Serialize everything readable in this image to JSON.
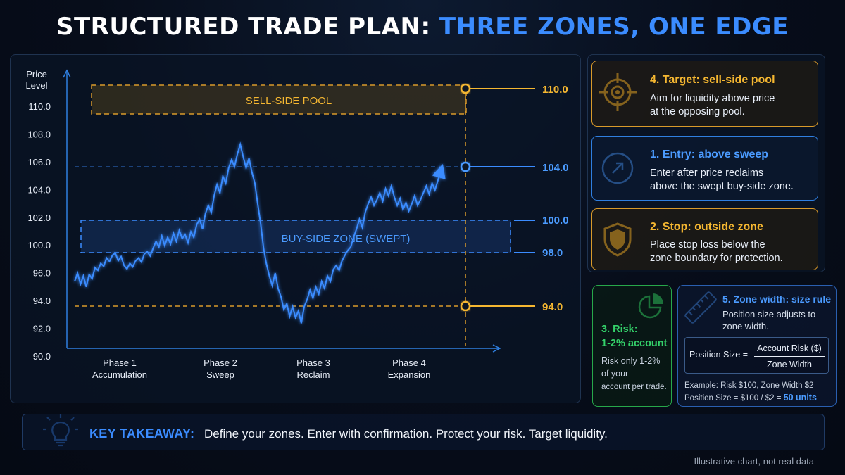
{
  "title": {
    "part1": "STRUCTURED TRADE PLAN:",
    "part2": "THREE ZONES, ONE EDGE"
  },
  "chart_data": {
    "type": "line",
    "ylabel": "Price Level",
    "y_ticks": [
      "90.0",
      "92.0",
      "94.0",
      "96.0",
      "100.0",
      "102.0",
      "104.0",
      "106.0",
      "108.0",
      "110.0"
    ],
    "phases": [
      {
        "num": "Phase 1",
        "name": "Accumulation"
      },
      {
        "num": "Phase 2",
        "name": "Sweep"
      },
      {
        "num": "Phase 3",
        "name": "Reclaim"
      },
      {
        "num": "Phase 4",
        "name": "Expansion"
      }
    ],
    "zones": {
      "sell_side": {
        "label": "SELL-SIDE POOL"
      },
      "buy_side": {
        "label": "BUY-SIDE ZONE (SWEPT)",
        "top": "100.0",
        "bottom": "98.0"
      }
    },
    "levels": {
      "target": "110.0",
      "entry": "104.0",
      "stop": "94.0"
    },
    "series": [
      {
        "values": [
          95.4,
          96.0,
          95.2,
          95.8,
          95.0,
          95.9,
          95.6,
          96.8,
          96.4,
          97.4,
          97.0,
          98.2,
          97.7,
          98.6,
          98.9,
          97.8,
          98.4,
          97.1,
          96.6,
          97.4,
          96.9,
          97.8,
          98.2,
          97.6,
          98.8,
          99.1,
          98.5,
          99.6,
          100.3,
          99.8,
          100.7,
          100.0,
          100.6,
          100.1,
          100.9,
          100.3,
          101.1,
          100.5,
          100.8,
          100.2,
          101.0,
          100.6,
          101.5,
          101.9,
          101.2,
          102.3,
          102.9,
          102.4,
          103.6,
          104.4,
          103.8,
          105.0,
          104.5,
          105.6,
          106.2,
          105.7,
          106.6,
          107.3,
          106.4,
          105.6,
          106.3,
          105.3,
          104.5,
          103.0,
          101.6,
          99.6,
          97.3,
          95.8,
          95.1,
          96.0,
          94.9,
          94.3,
          93.4,
          93.8,
          92.9,
          93.6,
          92.8,
          93.3,
          92.4,
          93.6,
          94.1,
          94.8,
          94.2,
          95.0,
          94.5,
          95.4,
          94.9,
          95.8,
          95.4,
          96.5,
          97.1,
          96.4,
          97.8,
          98.6,
          99.3,
          99.8,
          100.6,
          101.2,
          101.9,
          101.3,
          102.4,
          103.0,
          103.5,
          102.9,
          103.3,
          103.8,
          103.2,
          104.1,
          103.6,
          104.3,
          103.5,
          102.9,
          103.4,
          102.6,
          103.1,
          102.5,
          103.0,
          103.6,
          102.9,
          103.3,
          103.8,
          104.3,
          103.7,
          104.5,
          104.0,
          104.7,
          105.4
        ]
      }
    ],
    "x_range": [
      0,
      126
    ],
    "grid": false
  },
  "cards": {
    "target": {
      "title": "4. Target: sell-side pool",
      "line1": "Aim for liquidity above price",
      "line2": "at the opposing pool.",
      "icon": "crosshair-icon"
    },
    "entry": {
      "title": "1. Entry: above sweep",
      "line1": "Enter after price reclaims",
      "line2": "above the swept buy-side zone.",
      "icon": "arrow-up-right-icon"
    },
    "stop": {
      "title": "2. Stop: outside zone",
      "line1": "Place stop loss below the",
      "line2": "zone boundary for protection.",
      "icon": "shield-icon"
    },
    "risk": {
      "title1": "3. Risk:",
      "title2": "1-2% account",
      "l1": "Risk only 1-2%",
      "l2": "of your",
      "l3": "account per trade.",
      "icon": "pie-chart-icon"
    },
    "width": {
      "title": "5. Zone width: size rule",
      "l1": "Position size adjusts to",
      "l2": "zone width.",
      "icon": "ruler-icon",
      "formula_label": "Position Size =",
      "formula_num": "Account Risk ($)",
      "formula_den": "Zone Width",
      "example1": "Example: Risk $100, Zone Width $2",
      "example2": "Position Size = $100 / $2 =",
      "result": "50 units"
    }
  },
  "takeaway": {
    "label": "KEY TAKEAWAY:",
    "text": "Define your zones. Enter with confirmation. Protect your risk. Target liquidity.",
    "icon": "lightbulb-icon"
  },
  "footnote": "Illustrative chart, not real data",
  "colors": {
    "blue": "#3b8cff",
    "yellow": "#f5b731",
    "green": "#34d26a",
    "background": "#070d1a"
  }
}
